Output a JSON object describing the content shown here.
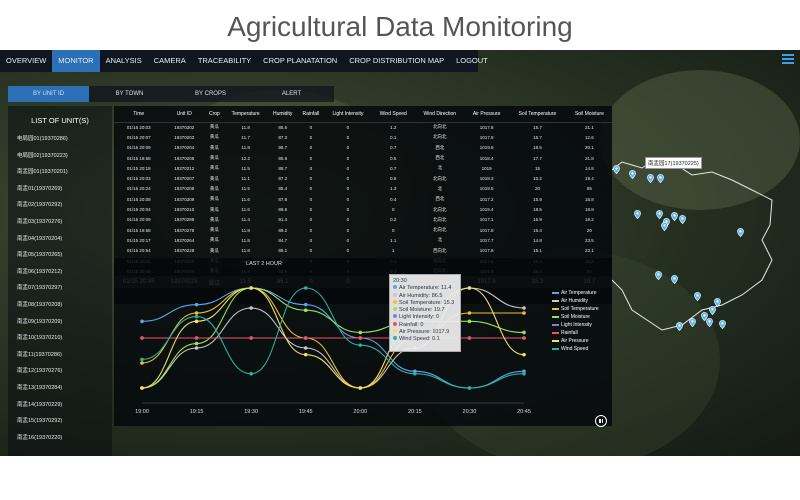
{
  "page_title": "Agricultural Data Monitoring",
  "nav": [
    {
      "label": "OVERVIEW",
      "active": false
    },
    {
      "label": "MONITOR",
      "active": true
    },
    {
      "label": "ANALYSIS",
      "active": false
    },
    {
      "label": "CAMERA",
      "active": false
    },
    {
      "label": "TRACEABILITY",
      "active": false
    },
    {
      "label": "CROP PLANATATION",
      "active": false
    },
    {
      "label": "CROP DISTRIBUTION MAP",
      "active": false
    },
    {
      "label": "LOGOUT",
      "active": false
    }
  ],
  "subtabs": [
    {
      "label": "BY UNIT ID",
      "active": true
    },
    {
      "label": "BY TOWN",
      "active": false
    },
    {
      "label": "BY CROPS",
      "active": false
    },
    {
      "label": "ALERT",
      "active": false
    }
  ],
  "unit_list": {
    "title": "LIST OF UNIT(S)",
    "items": [
      "电局园01(19370286)",
      "电局园02(19370223)",
      "南盂园01(19370201)",
      "南盂01(19370269)",
      "南盂02(19370292)",
      "南盂03(19370276)",
      "南盂04(19370204)",
      "南盂05(19370265)",
      "南盂06(19370212)",
      "南盂07(19370297)",
      "南盂08(19370208)",
      "南盂09(19370209)",
      "南盂10(19370210)",
      "南盂11(19370286)",
      "南盂12(19370276)",
      "南盂13(19370284)",
      "南盂14(19370229)",
      "南盂15(19370292)",
      "南盂16(19370220)"
    ]
  },
  "table": {
    "headers": [
      "Time",
      "Unit ID",
      "Crop",
      "Temperature",
      "Humidity",
      "Rainfall",
      "Light Intensity",
      "Wind Speed",
      "Wind Direction",
      "Air Pressure",
      "Soil Temperature",
      "Soil Moisture"
    ],
    "rows": [
      [
        "01/15 20:03",
        "19370202",
        "黄瓜",
        "11.8",
        "85.5",
        "0",
        "0",
        "1.2",
        "北向北",
        "1017.8",
        "15.7",
        "21.1"
      ],
      [
        "01/15 20:07",
        "19370203",
        "黄瓜",
        "11.7",
        "87.3",
        "0",
        "0",
        "0.1",
        "北向北",
        "1017.8",
        "15.7",
        "12.6"
      ],
      [
        "01/15 20:09",
        "19370204",
        "黄瓜",
        "11.8",
        "88.7",
        "0",
        "0",
        "0.7",
        "西北",
        "1019.8",
        "18.5",
        "20.1"
      ],
      [
        "01/15 19:58",
        "19370205",
        "黄瓜",
        "12.2",
        "85.9",
        "0",
        "0",
        "0.5",
        "西北",
        "1018.4",
        "17.7",
        "21.8"
      ],
      [
        "01/15 20:18",
        "19370212",
        "黄瓜",
        "11.5",
        "88.7",
        "0",
        "0",
        "0.7",
        "北",
        "1019",
        "15",
        "14.8"
      ],
      [
        "01/15 20:03",
        "19370207",
        "黄瓜",
        "11.1",
        "87.2",
        "0",
        "0",
        "0.8",
        "北向北",
        "1018.3",
        "10.2",
        "19.4"
      ],
      [
        "01/15 20:24",
        "19370208",
        "黄瓜",
        "11.5",
        "85.4",
        "0",
        "0",
        "1.3",
        "北",
        "1019.5",
        "20",
        "85"
      ],
      [
        "01/15 20:08",
        "19370209",
        "黄瓜",
        "11.6",
        "87.8",
        "0",
        "0",
        "0.4",
        "西北",
        "1017.2",
        "15.9",
        "18.8"
      ],
      [
        "01/15 20:04",
        "19370210",
        "黄瓜",
        "11.6",
        "88.6",
        "0",
        "0",
        "0",
        "北向北",
        "1019.4",
        "18.5",
        "18.8"
      ],
      [
        "01/15 20:09",
        "19370289",
        "黄瓜",
        "11.4",
        "91.4",
        "0",
        "0",
        "0.2",
        "北向北",
        "1017.1",
        "15.9",
        "18.2"
      ],
      [
        "01/15 19:58",
        "19370278",
        "黄瓜",
        "11.8",
        "89.2",
        "0",
        "0",
        "0",
        "北向北",
        "1017.8",
        "16.4",
        "20"
      ],
      [
        "01/15 20:17",
        "19370264",
        "黄瓜",
        "11.8",
        "84.7",
        "0",
        "0",
        "1.1",
        "北",
        "1017.7",
        "14.8",
        "23.5"
      ],
      [
        "01/15 20:54",
        "19370228",
        "黄瓜",
        "11.8",
        "85.1",
        "0",
        "0",
        "1",
        "西向北",
        "1017.8",
        "15.1",
        "23.1"
      ],
      [
        "01/15 20:41",
        "19370283",
        "黄瓜",
        "11.8",
        "87.7",
        "0",
        "0",
        "0.3",
        "北向北",
        "1017.8",
        "15.4",
        "18.8"
      ],
      [
        "01/15 20:48",
        "19370204",
        "黄瓜",
        "11.8",
        "88.6",
        "0",
        "0",
        "0.2",
        "北向北",
        "1017.8",
        "16.4",
        "20"
      ]
    ],
    "current_row": [
      "01/15 20:45",
      "19370225",
      "黄瓜",
      "11.5",
      "86.1",
      "0",
      "0",
      "0.1",
      "西北",
      "1017.6",
      "15.3",
      "19.7"
    ]
  },
  "chart_data": {
    "type": "line",
    "title": "LAST 2 HOUR",
    "x": [
      "19:00",
      "19:15",
      "19:30",
      "19:45",
      "20:00",
      "20:15",
      "20:30",
      "20:45"
    ],
    "series": [
      {
        "name": "Air Temperature",
        "color": "#5aa6e8",
        "values": [
          11.8,
          11.9,
          12.0,
          11.9,
          11.7,
          11.5,
          11.4,
          11.5
        ]
      },
      {
        "name": "Air Humidity",
        "color": "#c9c9c9",
        "values": [
          84,
          85,
          86,
          85,
          84,
          85,
          86.5,
          86
        ]
      },
      {
        "name": "Soil Temperature",
        "color": "#f2c12e",
        "values": [
          15.1,
          15.3,
          15.4,
          15.2,
          15.0,
          15.2,
          15.3,
          15.3
        ]
      },
      {
        "name": "Soil Moisture",
        "color": "#9be05a",
        "values": [
          19.1,
          19.5,
          20.0,
          19.8,
          19.6,
          19.7,
          19.7,
          19.6
        ]
      },
      {
        "name": "Light Intensity",
        "color": "#8a7bd6",
        "values": [
          0,
          0,
          0,
          0,
          0,
          0,
          0,
          0
        ]
      },
      {
        "name": "Rainfall",
        "color": "#e8546a",
        "values": [
          0,
          0,
          0,
          0,
          0,
          0,
          0,
          0
        ]
      },
      {
        "name": "Air Pressure",
        "color": "#f2e06a",
        "values": [
          1017.6,
          1017.8,
          1017.9,
          1017.7,
          1017.6,
          1017.8,
          1017.9,
          1017.7
        ]
      },
      {
        "name": "Wind Speed",
        "color": "#2bb0a3",
        "values": [
          0.3,
          0.6,
          0.2,
          0.8,
          0.4,
          0.2,
          0.1,
          0.2
        ]
      }
    ]
  },
  "tooltip": {
    "time": "20:30",
    "rows": [
      {
        "label": "Air Temperature:",
        "value": "11.4",
        "color": "#5aa6e8"
      },
      {
        "label": "Air Humidity:",
        "value": "86.5",
        "color": "#c9c9c9"
      },
      {
        "label": "Soil Temperature:",
        "value": "15.3",
        "color": "#f2c12e"
      },
      {
        "label": "Soil Moisture:",
        "value": "19.7",
        "color": "#9be05a"
      },
      {
        "label": "Light Intensity:",
        "value": "0",
        "color": "#8a7bd6"
      },
      {
        "label": "Rainfall:",
        "value": "0",
        "color": "#e8546a"
      },
      {
        "label": "Air Pressure:",
        "value": "1017.9",
        "color": "#f2e06a"
      },
      {
        "label": "Wind Speed:",
        "value": "0.1",
        "color": "#2bb0a3"
      }
    ]
  },
  "map": {
    "label": "南盂园17(19370225)"
  },
  "icons": {
    "menu": "menu-icon",
    "pause": "pause-icon",
    "pin": "map-pin-icon"
  }
}
